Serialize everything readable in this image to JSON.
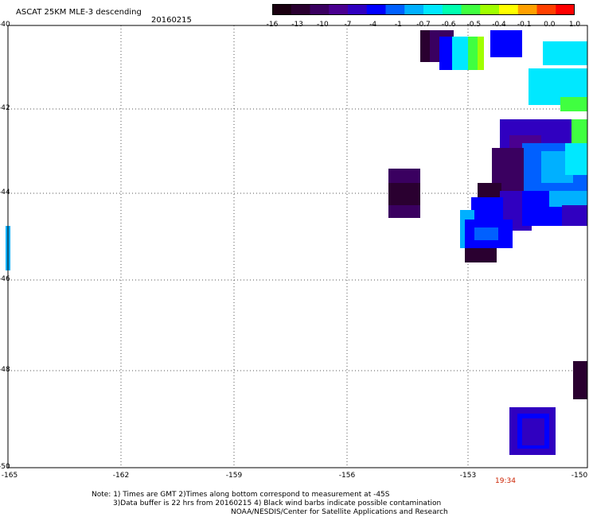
{
  "header": {
    "title": "ASCAT 25KM MLE-3 descending",
    "date": "20160215"
  },
  "colorbar": {
    "tick_labels": [
      "-16",
      "-13",
      "-10",
      "-7",
      "-4",
      "-1",
      "-0.7",
      "-0.6",
      "-0.5",
      "-0.4",
      "-0.1",
      "0.0",
      "1.0"
    ],
    "colors": [
      "#1a0010",
      "#2a0030",
      "#3a0060",
      "#4a0090",
      "#3000c0",
      "#0000ff",
      "#0060ff",
      "#00b0ff",
      "#00e8ff",
      "#00ffb0",
      "#40ff40",
      "#a0ff00",
      "#ffff00",
      "#ffa000",
      "#ff4000",
      "#ff0000"
    ]
  },
  "axes": {
    "y_labels": [
      "-40",
      "-42",
      "-44",
      "-46",
      "-48",
      "-50"
    ],
    "x_labels": [
      "-165",
      "-162",
      "-159",
      "-156",
      "-153",
      "-150"
    ]
  },
  "time_label": "19:34",
  "notes": [
    "Note: 1) Times are GMT 2)Times along bottom correspond to measurement at -45S",
    "3)Data buffer is 22 hrs from 20160215 4) Black wind barbs indicate possible contamination",
    "NOAA/NESDIS/Center for Satellite Applications and Research"
  ]
}
